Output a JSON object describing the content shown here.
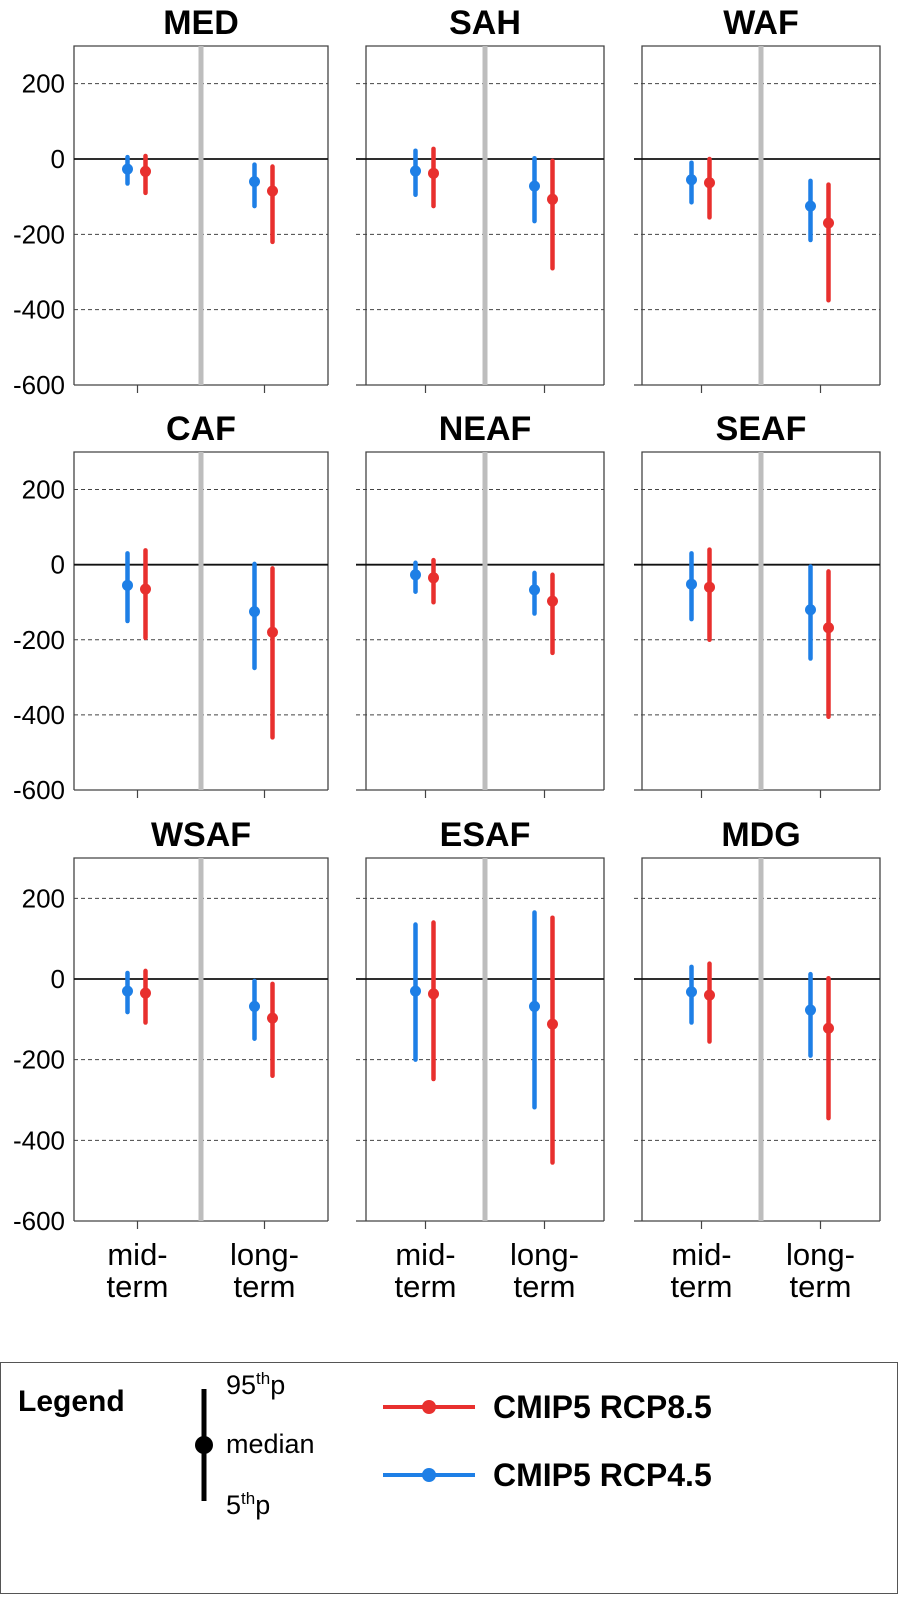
{
  "chart_data": {
    "type": "errorbar",
    "y_axis": {
      "ylim": [
        -600,
        300
      ],
      "ticks": [
        200,
        0,
        -200,
        -400,
        -600
      ],
      "gridlines": [
        200,
        -200,
        -400
      ]
    },
    "categories": [
      "mid-\nterm",
      "long-\nterm"
    ],
    "category_lines": [
      [
        "mid-",
        "term"
      ],
      [
        "long-",
        "term"
      ]
    ],
    "series": [
      {
        "name": "CMIP5 RCP4.5",
        "color": "#1e7fe6"
      },
      {
        "name": "CMIP5 RCP8.5",
        "color": "#e8302e"
      }
    ],
    "panels": [
      {
        "title": "MED",
        "data": {
          "CMIP5 RCP4.5": {
            "mid": {
              "p5": -65,
              "median": -27,
              "p95": 5
            },
            "long": {
              "p5": -125,
              "median": -60,
              "p95": -15
            }
          },
          "CMIP5 RCP8.5": {
            "mid": {
              "p5": -90,
              "median": -33,
              "p95": 8
            },
            "long": {
              "p5": -220,
              "median": -85,
              "p95": -20
            }
          }
        }
      },
      {
        "title": "SAH",
        "data": {
          "CMIP5 RCP4.5": {
            "mid": {
              "p5": -95,
              "median": -32,
              "p95": 22
            },
            "long": {
              "p5": -165,
              "median": -72,
              "p95": 2
            }
          },
          "CMIP5 RCP8.5": {
            "mid": {
              "p5": -125,
              "median": -38,
              "p95": 27
            },
            "long": {
              "p5": -290,
              "median": -107,
              "p95": -5
            }
          }
        }
      },
      {
        "title": "WAF",
        "data": {
          "CMIP5 RCP4.5": {
            "mid": {
              "p5": -115,
              "median": -55,
              "p95": -10
            },
            "long": {
              "p5": -215,
              "median": -125,
              "p95": -58
            }
          },
          "CMIP5 RCP8.5": {
            "mid": {
              "p5": -155,
              "median": -63,
              "p95": 0
            },
            "long": {
              "p5": -375,
              "median": -170,
              "p95": -68
            }
          }
        }
      },
      {
        "title": "CAF",
        "data": {
          "CMIP5 RCP4.5": {
            "mid": {
              "p5": -150,
              "median": -55,
              "p95": 30
            },
            "long": {
              "p5": -275,
              "median": -125,
              "p95": 2
            }
          },
          "CMIP5 RCP8.5": {
            "mid": {
              "p5": -195,
              "median": -65,
              "p95": 38
            },
            "long": {
              "p5": -460,
              "median": -180,
              "p95": -10
            }
          }
        }
      },
      {
        "title": "NEAF",
        "data": {
          "CMIP5 RCP4.5": {
            "mid": {
              "p5": -72,
              "median": -27,
              "p95": 5
            },
            "long": {
              "p5": -130,
              "median": -67,
              "p95": -22
            }
          },
          "CMIP5 RCP8.5": {
            "mid": {
              "p5": -100,
              "median": -35,
              "p95": 12
            },
            "long": {
              "p5": -235,
              "median": -97,
              "p95": -27
            }
          }
        }
      },
      {
        "title": "SEAF",
        "data": {
          "CMIP5 RCP4.5": {
            "mid": {
              "p5": -145,
              "median": -52,
              "p95": 30
            },
            "long": {
              "p5": -250,
              "median": -120,
              "p95": -5
            }
          },
          "CMIP5 RCP8.5": {
            "mid": {
              "p5": -200,
              "median": -60,
              "p95": 40
            },
            "long": {
              "p5": -405,
              "median": -168,
              "p95": -18
            }
          }
        }
      },
      {
        "title": "WSAF",
        "data": {
          "CMIP5 RCP4.5": {
            "mid": {
              "p5": -82,
              "median": -30,
              "p95": 15
            },
            "long": {
              "p5": -148,
              "median": -68,
              "p95": -5
            }
          },
          "CMIP5 RCP8.5": {
            "mid": {
              "p5": -108,
              "median": -35,
              "p95": 20
            },
            "long": {
              "p5": -240,
              "median": -97,
              "p95": -12
            }
          }
        }
      },
      {
        "title": "ESAF",
        "data": {
          "CMIP5 RCP4.5": {
            "mid": {
              "p5": -200,
              "median": -30,
              "p95": 135
            },
            "long": {
              "p5": -318,
              "median": -68,
              "p95": 165
            }
          },
          "CMIP5 RCP8.5": {
            "mid": {
              "p5": -248,
              "median": -37,
              "p95": 140
            },
            "long": {
              "p5": -455,
              "median": -112,
              "p95": 152
            }
          }
        }
      },
      {
        "title": "MDG",
        "data": {
          "CMIP5 RCP4.5": {
            "mid": {
              "p5": -108,
              "median": -32,
              "p95": 30
            },
            "long": {
              "p5": -190,
              "median": -77,
              "p95": 12
            }
          },
          "CMIP5 RCP8.5": {
            "mid": {
              "p5": -155,
              "median": -40,
              "p95": 38
            },
            "long": {
              "p5": -345,
              "median": -122,
              "p95": 2
            }
          }
        }
      }
    ]
  },
  "legend": {
    "title": "Legend",
    "p95_base": "95",
    "p95_sup": "th",
    "p95_suffix": "p",
    "median": "median",
    "p5_base": "5",
    "p5_sup": "th",
    "p5_suffix": "p",
    "series": [
      {
        "name": "CMIP5 RCP8.5",
        "color": "#e8302e"
      },
      {
        "name": "CMIP5 RCP4.5",
        "color": "#1e7fe6"
      }
    ]
  }
}
